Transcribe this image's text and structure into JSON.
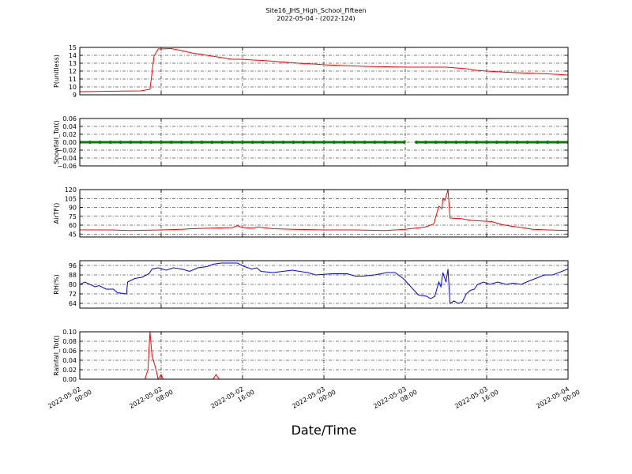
{
  "header": {
    "title": "Site16_JHS_High_School_Fifteen",
    "subtitle": "2022-05-04 - (2022-124)"
  },
  "chart_data": [
    {
      "type": "line",
      "ylabel": "P(unitless)",
      "color": "#ff0000",
      "xlim": [
        "2022-05-02 00:00",
        "2022-05-04 00:00"
      ],
      "xticks": [
        "2022-05-02 00:00",
        "2022-05-02 08:00",
        "2022-05-02 16:00",
        "2022-05-03 00:00",
        "2022-05-03 08:00",
        "2022-05-03 16:00",
        "2022-05-04 00:00"
      ],
      "ylim": [
        9,
        15
      ],
      "yticks": [
        9,
        10,
        11,
        12,
        13,
        14,
        15
      ],
      "grid": true,
      "x": [
        "2022-05-02 00:00",
        "2022-05-02 03:00",
        "2022-05-02 06:00",
        "2022-05-02 06:54",
        "2022-05-02 07:18",
        "2022-05-02 07:42",
        "2022-05-02 09:00",
        "2022-05-02 10:00",
        "2022-05-02 11:00",
        "2022-05-02 12:00",
        "2022-05-02 13:00",
        "2022-05-02 14:00",
        "2022-05-02 15:00",
        "2022-05-02 16:00",
        "2022-05-02 17:00",
        "2022-05-02 18:00",
        "2022-05-02 19:00",
        "2022-05-02 20:00",
        "2022-05-02 21:00",
        "2022-05-02 22:00",
        "2022-05-02 23:00",
        "2022-05-03 00:00",
        "2022-05-03 02:00",
        "2022-05-03 04:00",
        "2022-05-03 06:00",
        "2022-05-03 08:00",
        "2022-05-03 10:00",
        "2022-05-03 12:00",
        "2022-05-03 13:00",
        "2022-05-03 14:00",
        "2022-05-03 15:00",
        "2022-05-03 16:00",
        "2022-05-03 18:00",
        "2022-05-03 20:00",
        "2022-05-03 22:00",
        "2022-05-04 00:00"
      ],
      "values": [
        9.4,
        9.45,
        9.5,
        9.7,
        13.9,
        14.8,
        14.85,
        14.6,
        14.3,
        14.1,
        13.9,
        13.7,
        13.5,
        13.5,
        13.4,
        13.35,
        13.25,
        13.15,
        13.05,
        12.95,
        12.9,
        12.8,
        12.7,
        12.6,
        12.55,
        12.5,
        12.5,
        12.5,
        12.4,
        12.3,
        12.1,
        12.0,
        11.85,
        11.75,
        11.65,
        11.5
      ]
    },
    {
      "type": "line",
      "ylabel": "Snowfall_Tot()",
      "color": "#008000",
      "marker": "o",
      "xlim": [
        "2022-05-02 00:00",
        "2022-05-04 00:00"
      ],
      "xticks": [
        "2022-05-02 00:00",
        "2022-05-02 08:00",
        "2022-05-02 16:00",
        "2022-05-03 00:00",
        "2022-05-03 08:00",
        "2022-05-03 16:00",
        "2022-05-04 00:00"
      ],
      "ylim": [
        -0.06,
        0.06
      ],
      "yticks": [
        {
          "value": -0.06,
          "label": "−0.06"
        },
        {
          "value": -0.04,
          "label": "−0.04"
        },
        {
          "value": -0.02,
          "label": "−0.02"
        },
        {
          "value": 0,
          "label": "0.00"
        },
        0.02,
        0.04,
        0.06
      ],
      "grid": true,
      "x": [
        "2022-05-02 00:00",
        "2022-05-02 01:00",
        "2022-05-02 02:00",
        "2022-05-02 03:00",
        "2022-05-02 04:00",
        "2022-05-02 05:00",
        "2022-05-02 06:00",
        "2022-05-02 07:00",
        "2022-05-02 08:00",
        "2022-05-02 09:00",
        "2022-05-02 10:00",
        "2022-05-02 11:00",
        "2022-05-02 12:00",
        "2022-05-02 13:00",
        "2022-05-02 14:00",
        "2022-05-02 15:00",
        "2022-05-02 16:00",
        "2022-05-02 17:00",
        "2022-05-02 18:00",
        "2022-05-02 19:00",
        "2022-05-02 20:00",
        "2022-05-02 21:00",
        "2022-05-02 22:00",
        "2022-05-02 23:00",
        "2022-05-03 00:00",
        "2022-05-03 01:00",
        "2022-05-03 02:00",
        "2022-05-03 03:00",
        "2022-05-03 04:00",
        "2022-05-03 05:00",
        "2022-05-03 06:00",
        "2022-05-03 07:00",
        "2022-05-03 07:54",
        "2022-05-03 08:30",
        "2022-05-03 09:06",
        "2022-05-03 10:00",
        "2022-05-03 11:00",
        "2022-05-03 12:00",
        "2022-05-03 13:00",
        "2022-05-03 14:00",
        "2022-05-03 15:00",
        "2022-05-03 16:00",
        "2022-05-03 17:00",
        "2022-05-03 18:00",
        "2022-05-03 19:00",
        "2022-05-03 20:00",
        "2022-05-03 21:00",
        "2022-05-03 22:00",
        "2022-05-03 23:00",
        "2022-05-04 00:00"
      ],
      "values": [
        0,
        0,
        0,
        0,
        0,
        0,
        0,
        0,
        0,
        0,
        0,
        0,
        0,
        0,
        0,
        0,
        0,
        0,
        0,
        0,
        0,
        0,
        0,
        0,
        0,
        0,
        0,
        0,
        0,
        0,
        0,
        0,
        0,
        null,
        0,
        0,
        0,
        0,
        0,
        0,
        0,
        0,
        0,
        0,
        0,
        0,
        0,
        0,
        0,
        0
      ]
    },
    {
      "type": "line",
      "ylabel": "AirTF()",
      "color": "#ff0000",
      "xlim": [
        "2022-05-02 00:00",
        "2022-05-04 00:00"
      ],
      "xticks": [
        "2022-05-02 00:00",
        "2022-05-02 08:00",
        "2022-05-02 16:00",
        "2022-05-03 00:00",
        "2022-05-03 08:00",
        "2022-05-03 16:00",
        "2022-05-04 00:00"
      ],
      "ylim": [
        40,
        120
      ],
      "yticks": [
        45,
        60,
        75,
        90,
        105,
        120
      ],
      "grid": true,
      "x": [
        "2022-05-02 00:00",
        "2022-05-02 03:00",
        "2022-05-02 05:00",
        "2022-05-02 08:00",
        "2022-05-02 10:00",
        "2022-05-02 11:00",
        "2022-05-02 13:00",
        "2022-05-02 15:00",
        "2022-05-02 15:30",
        "2022-05-02 16:00",
        "2022-05-02 17:00",
        "2022-05-02 17:30",
        "2022-05-02 18:00",
        "2022-05-02 19:00",
        "2022-05-02 21:00",
        "2022-05-03 00:00",
        "2022-05-03 03:00",
        "2022-05-03 06:00",
        "2022-05-03 08:00",
        "2022-05-03 10:00",
        "2022-05-03 10:48",
        "2022-05-03 11:06",
        "2022-05-03 11:18",
        "2022-05-03 11:36",
        "2022-05-03 11:42",
        "2022-05-03 11:54",
        "2022-05-03 12:12",
        "2022-05-03 12:24",
        "2022-05-03 13:30",
        "2022-05-03 14:30",
        "2022-05-03 15:30",
        "2022-05-03 16:30",
        "2022-05-03 17:30",
        "2022-05-03 18:30",
        "2022-05-03 19:30",
        "2022-05-03 20:30",
        "2022-05-03 22:00",
        "2022-05-04 00:00"
      ],
      "values": [
        52,
        52,
        51,
        52,
        53,
        54,
        55,
        56,
        59,
        56,
        55,
        57,
        56,
        54,
        53,
        52,
        52,
        51,
        53,
        57,
        62,
        80,
        92,
        88,
        105,
        102,
        120,
        72,
        71,
        68,
        67,
        66,
        61,
        58,
        56,
        53,
        52,
        51
      ]
    },
    {
      "type": "line",
      "ylabel": "RH(%)",
      "color": "#0000ff",
      "xlim": [
        "2022-05-02 00:00",
        "2022-05-04 00:00"
      ],
      "xticks": [
        "2022-05-02 00:00",
        "2022-05-02 08:00",
        "2022-05-02 16:00",
        "2022-05-03 00:00",
        "2022-05-03 08:00",
        "2022-05-03 16:00",
        "2022-05-04 00:00"
      ],
      "ylim": [
        60,
        100
      ],
      "yticks": [
        64,
        72,
        80,
        88,
        96
      ],
      "grid": true,
      "x": [
        "2022-05-02 00:00",
        "2022-05-02 00:30",
        "2022-05-02 01:30",
        "2022-05-02 01:54",
        "2022-05-02 02:36",
        "2022-05-02 03:18",
        "2022-05-02 03:42",
        "2022-05-02 04:36",
        "2022-05-02 04:42",
        "2022-05-02 05:24",
        "2022-05-02 06:06",
        "2022-05-02 06:48",
        "2022-05-02 07:06",
        "2022-05-02 07:42",
        "2022-05-02 08:30",
        "2022-05-02 09:12",
        "2022-05-02 10:00",
        "2022-05-02 10:48",
        "2022-05-02 11:36",
        "2022-05-02 12:30",
        "2022-05-02 13:06",
        "2022-05-02 13:54",
        "2022-05-02 15:30",
        "2022-05-02 16:12",
        "2022-05-02 16:54",
        "2022-05-02 17:24",
        "2022-05-02 17:48",
        "2022-05-02 19:00",
        "2022-05-02 20:54",
        "2022-05-02 22:24",
        "2022-05-02 23:12",
        "2022-05-03 00:48",
        "2022-05-03 02:18",
        "2022-05-03 03:06",
        "2022-05-03 03:54",
        "2022-05-03 05:00",
        "2022-05-03 06:12",
        "2022-05-03 07:00",
        "2022-05-03 07:48",
        "2022-05-03 09:18",
        "2022-05-03 10:06",
        "2022-05-03 10:30",
        "2022-05-03 10:54",
        "2022-05-03 11:18",
        "2022-05-03 11:30",
        "2022-05-03 11:42",
        "2022-05-03 12:00",
        "2022-05-03 12:12",
        "2022-05-03 12:24",
        "2022-05-03 12:48",
        "2022-05-03 13:12",
        "2022-05-03 13:36",
        "2022-05-03 14:00",
        "2022-05-03 14:24",
        "2022-05-03 14:48",
        "2022-05-03 15:06",
        "2022-05-03 15:42",
        "2022-05-03 16:18",
        "2022-05-03 17:06",
        "2022-05-03 17:54",
        "2022-05-03 18:36",
        "2022-05-03 19:24",
        "2022-05-03 20:12",
        "2022-05-03 21:42",
        "2022-05-03 22:30",
        "2022-05-04 00:00"
      ],
      "values": [
        80,
        82,
        78,
        79,
        76,
        76,
        73,
        72,
        82,
        85,
        86,
        89,
        93,
        94,
        92,
        94,
        93,
        91,
        94,
        95,
        97,
        98,
        98,
        95,
        93,
        94,
        91,
        90,
        92,
        90,
        88,
        89,
        89,
        87,
        87,
        88,
        90,
        90,
        85,
        71,
        70,
        68,
        70,
        82,
        78,
        90,
        82,
        93,
        64,
        66,
        64,
        65,
        72,
        75,
        76,
        80,
        82,
        80,
        82,
        80,
        81,
        80,
        83,
        88,
        88,
        93
      ]
    },
    {
      "type": "line",
      "ylabel": "Rainfall_Tot()",
      "xlabel": "Date/Time",
      "color": "#ff0000",
      "xlim": [
        "2022-05-02 00:00",
        "2022-05-04 00:00"
      ],
      "xticks": [
        "2022-05-02 00:00",
        "2022-05-02 08:00",
        "2022-05-02 16:00",
        "2022-05-03 00:00",
        "2022-05-03 08:00",
        "2022-05-03 16:00",
        "2022-05-04 00:00"
      ],
      "ylim": [
        0,
        0.1
      ],
      "yticks": [
        {
          "value": 0,
          "label": "0.00"
        },
        0.02,
        0.04,
        0.06,
        0.08,
        {
          "value": 0.1,
          "label": "0.10"
        }
      ],
      "grid": true,
      "x": [
        "2022-05-02 00:00",
        "2022-05-02 06:24",
        "2022-05-02 06:42",
        "2022-05-02 06:54",
        "2022-05-02 07:06",
        "2022-05-02 07:30",
        "2022-05-02 07:42",
        "2022-05-02 08:00",
        "2022-05-02 08:12",
        "2022-05-02 13:06",
        "2022-05-02 13:24",
        "2022-05-02 13:42",
        "2022-05-04 00:00"
      ],
      "values": [
        0,
        0,
        0.02,
        0.1,
        0.05,
        0.02,
        0,
        0.01,
        0,
        0,
        0.01,
        0,
        0
      ]
    }
  ]
}
